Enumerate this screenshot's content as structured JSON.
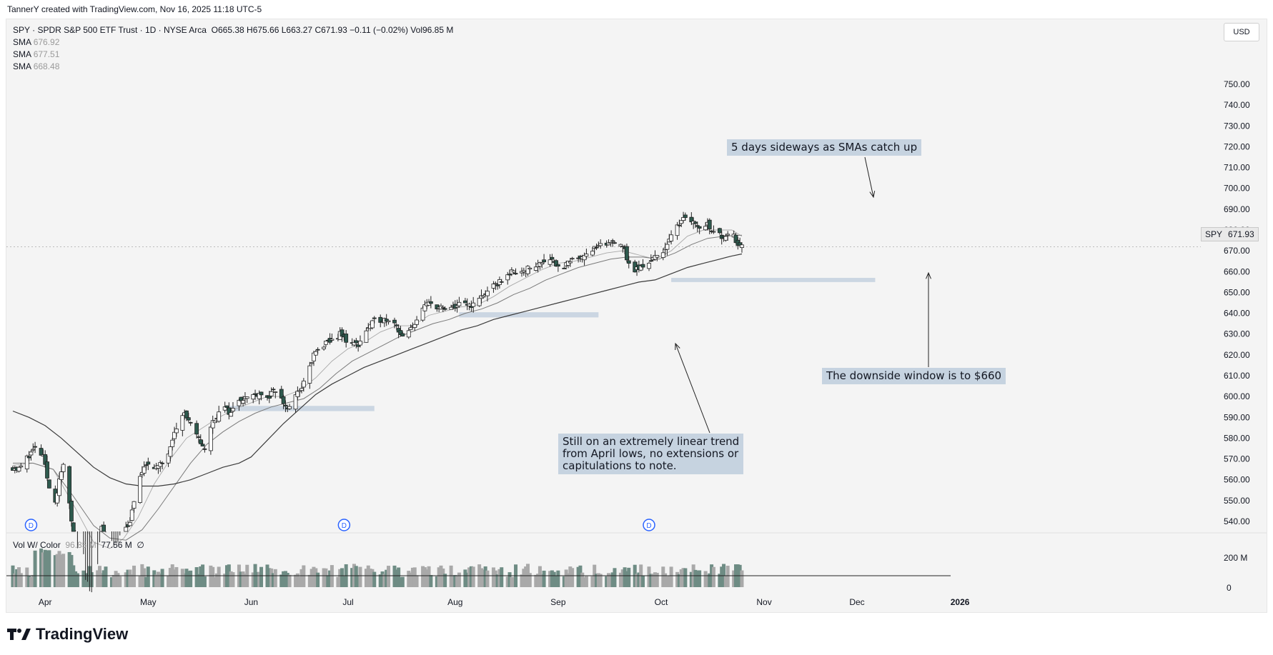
{
  "header": {
    "credit": "TannerY created with TradingView.com, Nov 16, 2025 11:18 UTC-5"
  },
  "legend": {
    "symbol_line": "SPY · SPDR S&P 500 ETF Trust · 1D · NYSE Arca",
    "ohlc": "O665.38  H675.66  L663.27  C671.93  −0.11 (−0.02%)  Vol96.85 M",
    "sma": [
      {
        "label": "SMA",
        "value": "676.92"
      },
      {
        "label": "SMA",
        "value": "677.51"
      },
      {
        "label": "SMA",
        "value": "668.48"
      }
    ]
  },
  "currency": "USD",
  "price_tag": {
    "symbol": "SPY",
    "value": "671.93"
  },
  "volume": {
    "label": "Vol W/ Color",
    "v1": "96.85 M",
    "v2": "77.56 M",
    "symbol": "∅",
    "axis": [
      "200 M",
      "0"
    ]
  },
  "annotations": {
    "sideways": "5 days sideways as SMAs catch up",
    "downside": "The downside window is to $660",
    "trend_1": "Still on an extremely linear trend",
    "trend_2": "from April lows, no extensions or",
    "trend_3": "capitulations to note."
  },
  "dividend_marker": "D",
  "brand": "TradingView",
  "colors": {
    "up": "#ffffff",
    "down": "#2e5a4e",
    "sma": "#555555",
    "zone": "#c6d3e0",
    "accent": "#2962ff"
  },
  "chart_data": {
    "type": "candlestick",
    "symbol": "SPY",
    "interval": "1D",
    "ylim": [
      535,
      760
    ],
    "y_ticks": [
      540,
      550,
      560,
      570,
      580,
      590,
      600,
      610,
      620,
      630,
      640,
      650,
      660,
      670,
      680,
      690,
      700,
      710,
      720,
      730,
      740,
      750
    ],
    "x_ticks": [
      "Apr",
      "May",
      "Jun",
      "Jul",
      "Aug",
      "Sep",
      "Oct",
      "Nov",
      "Dec",
      "2026"
    ],
    "x_tick_days": [
      16,
      67,
      118,
      166,
      219,
      270,
      321,
      372,
      418,
      469
    ],
    "day_origin": "2025-03-18",
    "last_day": 361,
    "dividend_days": [
      9,
      164,
      315
    ],
    "anchors": [
      [
        0,
        566
      ],
      [
        3,
        565
      ],
      [
        8,
        572
      ],
      [
        11,
        575
      ],
      [
        15,
        571
      ],
      [
        20,
        546
      ],
      [
        25,
        568
      ],
      [
        30,
        534
      ],
      [
        35,
        510
      ],
      [
        40,
        502
      ],
      [
        44,
        537
      ],
      [
        48,
        520
      ],
      [
        54,
        534
      ],
      [
        58,
        540
      ],
      [
        63,
        562
      ],
      [
        67,
        568
      ],
      [
        72,
        566
      ],
      [
        76,
        570
      ],
      [
        80,
        584
      ],
      [
        85,
        592
      ],
      [
        89,
        584
      ],
      [
        95,
        575
      ],
      [
        99,
        588
      ],
      [
        104,
        595
      ],
      [
        108,
        592
      ],
      [
        112,
        599
      ],
      [
        118,
        600
      ],
      [
        122,
        602
      ],
      [
        126,
        599
      ],
      [
        130,
        603
      ],
      [
        136,
        594
      ],
      [
        140,
        600
      ],
      [
        145,
        608
      ],
      [
        149,
        620
      ],
      [
        153,
        624
      ],
      [
        158,
        627
      ],
      [
        162,
        630
      ],
      [
        166,
        626
      ],
      [
        171,
        625
      ],
      [
        175,
        632
      ],
      [
        180,
        637
      ],
      [
        184,
        637
      ],
      [
        188,
        638
      ],
      [
        193,
        628
      ],
      [
        197,
        632
      ],
      [
        202,
        641
      ],
      [
        206,
        645
      ],
      [
        211,
        643
      ],
      [
        215,
        641
      ],
      [
        220,
        644
      ],
      [
        224,
        644
      ],
      [
        228,
        644
      ],
      [
        232,
        648
      ],
      [
        236,
        651
      ],
      [
        241,
        655
      ],
      [
        245,
        659
      ],
      [
        249,
        660
      ],
      [
        253,
        661
      ],
      [
        258,
        662
      ],
      [
        262,
        665
      ],
      [
        266,
        667
      ],
      [
        271,
        661
      ],
      [
        275,
        664
      ],
      [
        280,
        667
      ],
      [
        284,
        669
      ],
      [
        288,
        671
      ],
      [
        294,
        673
      ],
      [
        298,
        675
      ],
      [
        302,
        673
      ],
      [
        306,
        660
      ],
      [
        311,
        662
      ],
      [
        315,
        665
      ],
      [
        320,
        668
      ],
      [
        324,
        673
      ],
      [
        328,
        680
      ],
      [
        332,
        687
      ],
      [
        336,
        685
      ],
      [
        340,
        681
      ],
      [
        344,
        683
      ],
      [
        348,
        678
      ],
      [
        352,
        677
      ],
      [
        356,
        681
      ],
      [
        358,
        675
      ],
      [
        361,
        671.93
      ]
    ],
    "sma_short": [
      [
        0,
        567
      ],
      [
        10,
        568
      ],
      [
        20,
        565
      ],
      [
        30,
        548
      ],
      [
        40,
        530
      ],
      [
        48,
        527
      ],
      [
        55,
        532
      ],
      [
        62,
        542
      ],
      [
        70,
        558
      ],
      [
        78,
        570
      ],
      [
        86,
        580
      ],
      [
        94,
        585
      ],
      [
        102,
        590
      ],
      [
        110,
        594
      ],
      [
        118,
        597
      ],
      [
        126,
        600
      ],
      [
        134,
        600
      ],
      [
        142,
        603
      ],
      [
        150,
        609
      ],
      [
        158,
        617
      ],
      [
        166,
        623
      ],
      [
        174,
        626
      ],
      [
        182,
        631
      ],
      [
        190,
        634
      ],
      [
        198,
        634
      ],
      [
        206,
        639
      ],
      [
        214,
        641
      ],
      [
        222,
        643
      ],
      [
        230,
        644
      ],
      [
        238,
        648
      ],
      [
        246,
        653
      ],
      [
        254,
        657
      ],
      [
        262,
        661
      ],
      [
        270,
        664
      ],
      [
        278,
        665
      ],
      [
        286,
        667
      ],
      [
        294,
        669
      ],
      [
        302,
        670
      ],
      [
        310,
        668
      ],
      [
        318,
        666
      ],
      [
        326,
        670
      ],
      [
        334,
        677
      ],
      [
        342,
        680
      ],
      [
        350,
        680
      ],
      [
        356,
        680
      ],
      [
        361,
        677
      ]
    ],
    "sma_mid": [
      [
        0,
        568
      ],
      [
        10,
        568
      ],
      [
        20,
        565
      ],
      [
        30,
        552
      ],
      [
        40,
        538
      ],
      [
        48,
        532
      ],
      [
        56,
        531
      ],
      [
        64,
        536
      ],
      [
        72,
        546
      ],
      [
        80,
        557
      ],
      [
        88,
        568
      ],
      [
        96,
        577
      ],
      [
        104,
        583
      ],
      [
        112,
        588
      ],
      [
        120,
        592
      ],
      [
        128,
        595
      ],
      [
        136,
        597
      ],
      [
        144,
        599
      ],
      [
        152,
        604
      ],
      [
        160,
        611
      ],
      [
        168,
        617
      ],
      [
        176,
        621
      ],
      [
        184,
        625
      ],
      [
        192,
        629
      ],
      [
        200,
        632
      ],
      [
        208,
        635
      ],
      [
        216,
        637
      ],
      [
        224,
        640
      ],
      [
        232,
        642
      ],
      [
        240,
        645
      ],
      [
        248,
        649
      ],
      [
        256,
        652
      ],
      [
        264,
        656
      ],
      [
        272,
        659
      ],
      [
        280,
        662
      ],
      [
        288,
        664
      ],
      [
        296,
        666
      ],
      [
        304,
        667
      ],
      [
        312,
        667
      ],
      [
        320,
        666
      ],
      [
        328,
        669
      ],
      [
        336,
        673
      ],
      [
        344,
        676
      ],
      [
        352,
        677
      ],
      [
        361,
        677.5
      ]
    ],
    "sma_long": [
      [
        0,
        593
      ],
      [
        8,
        590
      ],
      [
        16,
        586
      ],
      [
        24,
        580
      ],
      [
        32,
        573
      ],
      [
        40,
        566
      ],
      [
        48,
        561
      ],
      [
        56,
        558
      ],
      [
        64,
        557
      ],
      [
        72,
        557
      ],
      [
        80,
        558
      ],
      [
        88,
        560
      ],
      [
        96,
        563
      ],
      [
        104,
        566
      ],
      [
        112,
        568
      ],
      [
        118,
        571
      ],
      [
        126,
        579
      ],
      [
        134,
        587
      ],
      [
        142,
        594
      ],
      [
        150,
        601
      ],
      [
        158,
        606
      ],
      [
        166,
        610
      ],
      [
        174,
        614
      ],
      [
        182,
        617
      ],
      [
        190,
        620
      ],
      [
        198,
        623
      ],
      [
        206,
        626
      ],
      [
        214,
        629
      ],
      [
        222,
        632
      ],
      [
        230,
        634
      ],
      [
        238,
        637
      ],
      [
        246,
        639
      ],
      [
        254,
        641
      ],
      [
        262,
        643
      ],
      [
        270,
        645
      ],
      [
        278,
        647
      ],
      [
        286,
        649
      ],
      [
        294,
        651
      ],
      [
        302,
        653
      ],
      [
        310,
        655
      ],
      [
        318,
        656
      ],
      [
        326,
        659
      ],
      [
        334,
        662
      ],
      [
        342,
        664
      ],
      [
        350,
        666
      ],
      [
        356,
        667.5
      ],
      [
        361,
        668.5
      ]
    ],
    "zones": [
      [
        105,
        179,
        593,
        595.5
      ],
      [
        221,
        290,
        638,
        640.5
      ],
      [
        326,
        427,
        655,
        657
      ]
    ]
  }
}
